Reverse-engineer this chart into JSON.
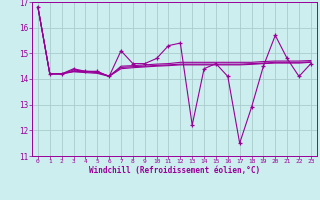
{
  "x": [
    0,
    1,
    2,
    3,
    4,
    5,
    6,
    7,
    8,
    9,
    10,
    11,
    12,
    13,
    14,
    15,
    16,
    17,
    18,
    19,
    20,
    21,
    22,
    23
  ],
  "y_jagged": [
    16.8,
    14.2,
    14.2,
    14.4,
    14.3,
    14.3,
    14.1,
    15.1,
    14.6,
    14.6,
    14.8,
    15.3,
    15.4,
    12.2,
    14.4,
    14.6,
    14.1,
    11.5,
    12.9,
    14.5,
    15.7,
    14.8,
    14.1,
    14.6
  ],
  "y_line1": [
    16.8,
    14.2,
    14.2,
    14.35,
    14.3,
    14.28,
    14.1,
    14.5,
    14.52,
    14.55,
    14.58,
    14.6,
    14.65,
    14.65,
    14.65,
    14.65,
    14.65,
    14.65,
    14.65,
    14.68,
    14.7,
    14.7,
    14.7,
    14.72
  ],
  "y_line2": [
    16.8,
    14.2,
    14.2,
    14.3,
    14.28,
    14.25,
    14.12,
    14.45,
    14.48,
    14.5,
    14.53,
    14.55,
    14.58,
    14.58,
    14.58,
    14.58,
    14.58,
    14.58,
    14.6,
    14.62,
    14.65,
    14.65,
    14.65,
    14.67
  ],
  "y_line3": [
    16.8,
    14.2,
    14.2,
    14.28,
    14.25,
    14.22,
    14.1,
    14.4,
    14.44,
    14.47,
    14.5,
    14.52,
    14.55,
    14.55,
    14.55,
    14.55,
    14.55,
    14.55,
    14.57,
    14.6,
    14.62,
    14.62,
    14.62,
    14.65
  ],
  "color": "#990099",
  "bg_color": "#cceeee",
  "grid_color": "#aacccc",
  "xlabel": "Windchill (Refroidissement éolien,°C)",
  "xlim": [
    -0.5,
    23.5
  ],
  "ylim": [
    11.0,
    17.0
  ],
  "yticks": [
    11,
    12,
    13,
    14,
    15,
    16,
    17
  ],
  "xticks": [
    0,
    1,
    2,
    3,
    4,
    5,
    6,
    7,
    8,
    9,
    10,
    11,
    12,
    13,
    14,
    15,
    16,
    17,
    18,
    19,
    20,
    21,
    22,
    23
  ]
}
